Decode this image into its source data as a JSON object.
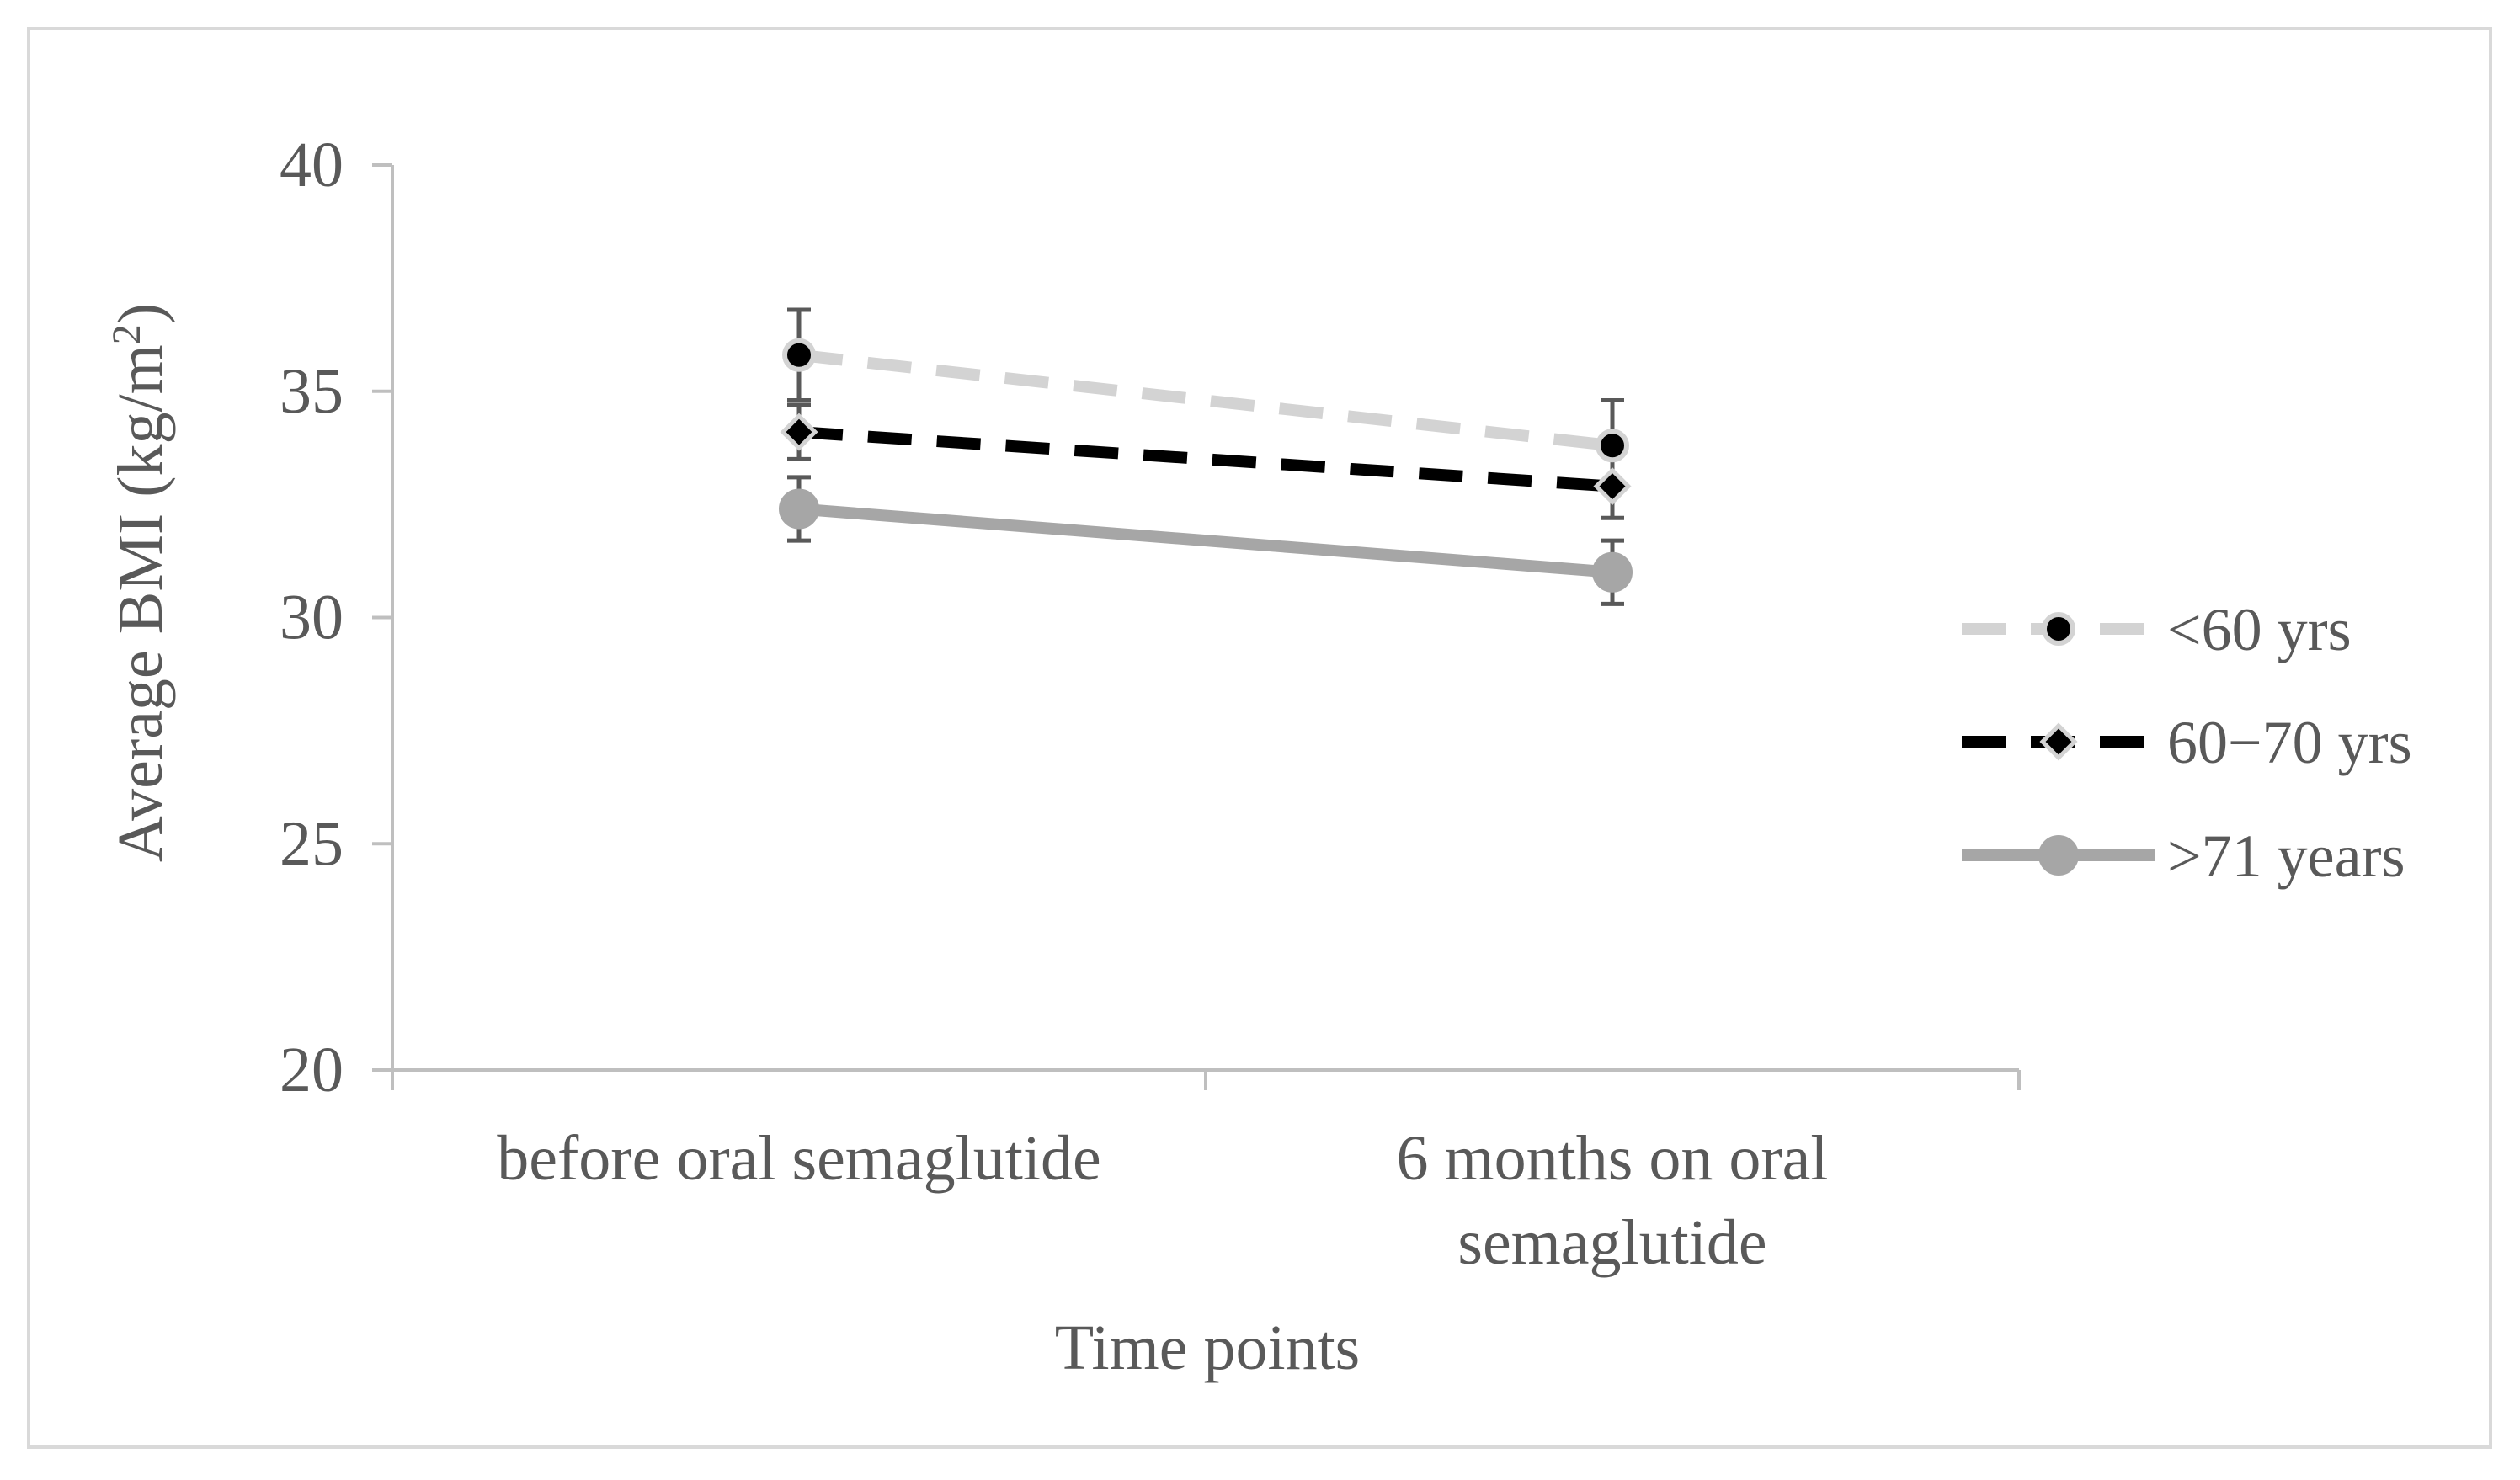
{
  "chart_data": {
    "type": "line",
    "title": "",
    "xlabel": "Time points",
    "ylabel_main": "Average BMI (kg/m",
    "ylabel_sup": "2",
    "ylabel_close": ")",
    "ylim": [
      20,
      40
    ],
    "yticks": [
      20,
      25,
      30,
      35,
      40
    ],
    "grid": false,
    "legend_position": "right",
    "categories": [
      [
        "before oral semaglutide"
      ],
      [
        "6 months on  oral",
        "semaglutide"
      ]
    ],
    "series": [
      {
        "name": "<60 yrs",
        "values": [
          35.8,
          33.8
        ],
        "error": [
          1.0,
          1.0
        ],
        "line_color": "#d3d3d3",
        "line_style": "dash",
        "marker": "circle",
        "marker_fill": "#000000",
        "marker_stroke": "#d3d3d3"
      },
      {
        "name": "60−70 yrs",
        "values": [
          34.1,
          32.9
        ],
        "error": [
          0.6,
          0.7
        ],
        "line_color": "#000000",
        "line_style": "dash",
        "marker": "diamond",
        "marker_fill": "#000000",
        "marker_stroke": "#d3d3d3"
      },
      {
        "name": ">71 years",
        "values": [
          32.4,
          31.0
        ],
        "error": [
          0.7,
          0.7
        ],
        "line_color": "#a6a6a6",
        "line_style": "solid",
        "marker": "circle",
        "marker_fill": "#a6a6a6",
        "marker_stroke": "#a6a6a6"
      }
    ],
    "colors": {
      "axis": "#bfbfbf",
      "text": "#595959",
      "error_bar": "#595959",
      "frame": "#d9d9d9"
    }
  }
}
